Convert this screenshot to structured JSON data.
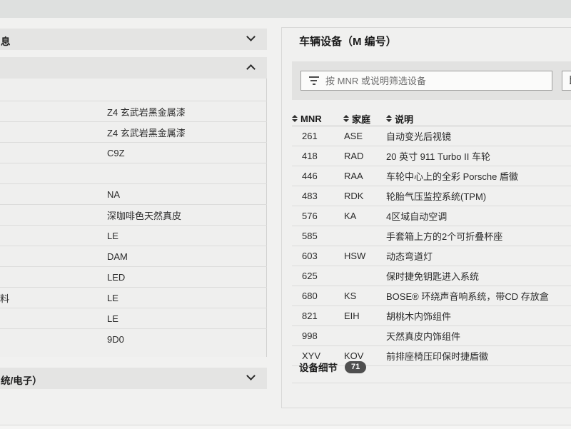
{
  "left_panel": {
    "sections": [
      {
        "label_fragment": "息",
        "state": "collapsed"
      },
      {
        "label_fragment": "",
        "state": "expanded"
      },
      {
        "label_fragment": "统/电子）",
        "state": "collapsed"
      }
    ],
    "rows": [
      {
        "label_fragment": "",
        "value": "Z4 玄武岩黑金属漆"
      },
      {
        "label_fragment": "",
        "value": "Z4 玄武岩黑金属漆"
      },
      {
        "label_fragment": "",
        "value": "C9Z"
      },
      {
        "label_fragment": "",
        "value": ""
      },
      {
        "label_fragment": "",
        "value": "NA"
      },
      {
        "label_fragment": "",
        "value": "深咖啡色天然真皮"
      },
      {
        "label_fragment": "",
        "value": "LE"
      },
      {
        "label_fragment": "",
        "value": "DAM"
      },
      {
        "label_fragment": "",
        "value": "LED"
      },
      {
        "label_fragment": "料",
        "value": "LE"
      },
      {
        "label_fragment": "",
        "value": "LE"
      },
      {
        "label_fragment": "",
        "value": "9D0"
      }
    ]
  },
  "equipment_panel": {
    "title": "车辆设备（M 编号）",
    "filter": {
      "placeholder": "按 MNR 或说明筛选设备"
    },
    "compare_button_label": "比",
    "table": {
      "columns": [
        "MNR",
        "家庭",
        "说明"
      ],
      "rows": [
        [
          "261",
          "ASE",
          "自动变光后视镜"
        ],
        [
          "418",
          "RAD",
          "20 英寸 911 Turbo II 车轮"
        ],
        [
          "446",
          "RAA",
          "车轮中心上的全彩 Porsche 盾徽"
        ],
        [
          "483",
          "RDK",
          "轮胎气压监控系统(TPM)"
        ],
        [
          "576",
          "KA",
          "4区域自动空调"
        ],
        [
          "585",
          "",
          "手套箱上方的2个可折叠杯座"
        ],
        [
          "603",
          "HSW",
          "动态弯道灯"
        ],
        [
          "625",
          "",
          "保时捷免钥匙进入系统"
        ],
        [
          "680",
          "KS",
          "BOSE® 环绕声音响系统，带CD 存放盒"
        ],
        [
          "821",
          "EIH",
          "胡桃木内饰组件"
        ],
        [
          "998",
          "",
          "天然真皮内饰组件"
        ],
        [
          "XYV",
          "KOV",
          "前排座椅压印保时捷盾徽"
        ]
      ]
    },
    "footer": {
      "label": "设备细节",
      "badge": "71"
    }
  },
  "icons": {
    "filter": "filter-icon",
    "sort": "sort-icon",
    "chevron_down": "chevron-down-icon",
    "chevron_up": "chevron-up-icon"
  },
  "colors": {
    "top_bar": "#dee0df",
    "page_bg": "#f1f1f0",
    "card_bg": "#efefee",
    "band_bg": "#e4e4e3",
    "toolbar_bg": "#e2e2e1",
    "input_border": "#9f9f9e",
    "separator": "#dbdbda",
    "text_primary": "#222222",
    "text_placeholder": "#6d6d6d",
    "badge_bg": "#4f4f4f",
    "badge_text": "#ffffff"
  }
}
